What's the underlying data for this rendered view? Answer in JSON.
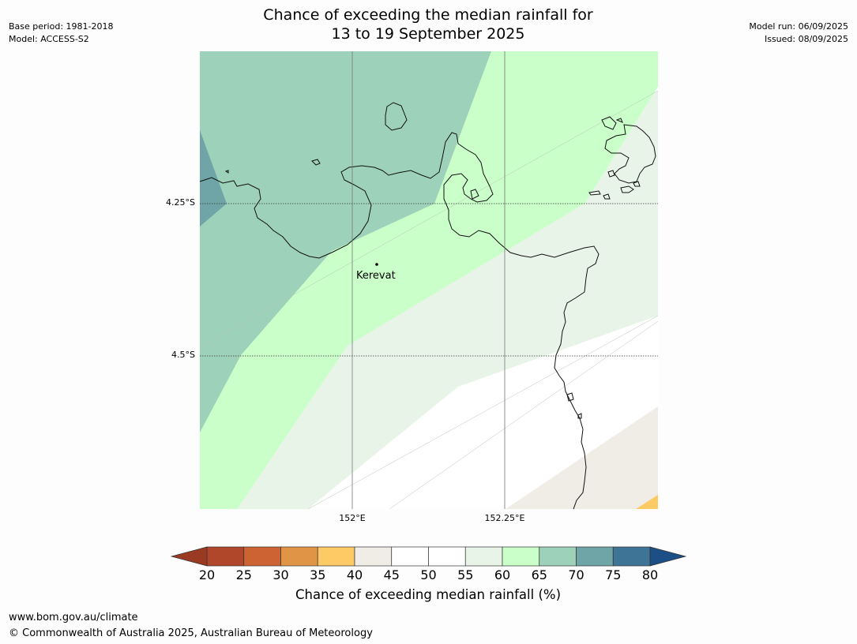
{
  "title": {
    "line1": "Chance of exceeding the median rainfall for",
    "line2": "13 to 19 September 2025"
  },
  "meta_left": {
    "base_period": "Base period: 1981-2018",
    "model": "Model: ACCESS-S2"
  },
  "meta_right": {
    "model_run": "Model run: 06/09/2025",
    "issued": "Issued: 08/09/2025"
  },
  "map": {
    "lat_labels": [
      "4.25°S",
      "4.5°S"
    ],
    "lon_labels": [
      "152°E",
      "152.25°E"
    ],
    "town": "Kerevat"
  },
  "legend": {
    "title": "Chance of exceeding median rainfall (%)",
    "ticks": [
      "20",
      "25",
      "30",
      "35",
      "40",
      "45",
      "50",
      "55",
      "60",
      "65",
      "70",
      "75",
      "80"
    ],
    "colors": [
      "#b0472a",
      "#cd6333",
      "#e09445",
      "#fdca66",
      "#f0ece6",
      "#ffffff",
      "#ffffff",
      "#e9f4e9",
      "#caffca",
      "#9ed1ba",
      "#6fa5a6",
      "#3e7495"
    ],
    "low_extend_color": "#9b3a23",
    "high_extend_color": "#1c4f86"
  },
  "footer": {
    "url": "www.bom.gov.au/climate",
    "copyright": "© Commonwealth of Australia 2025, Australian Bureau of Meteorology"
  }
}
